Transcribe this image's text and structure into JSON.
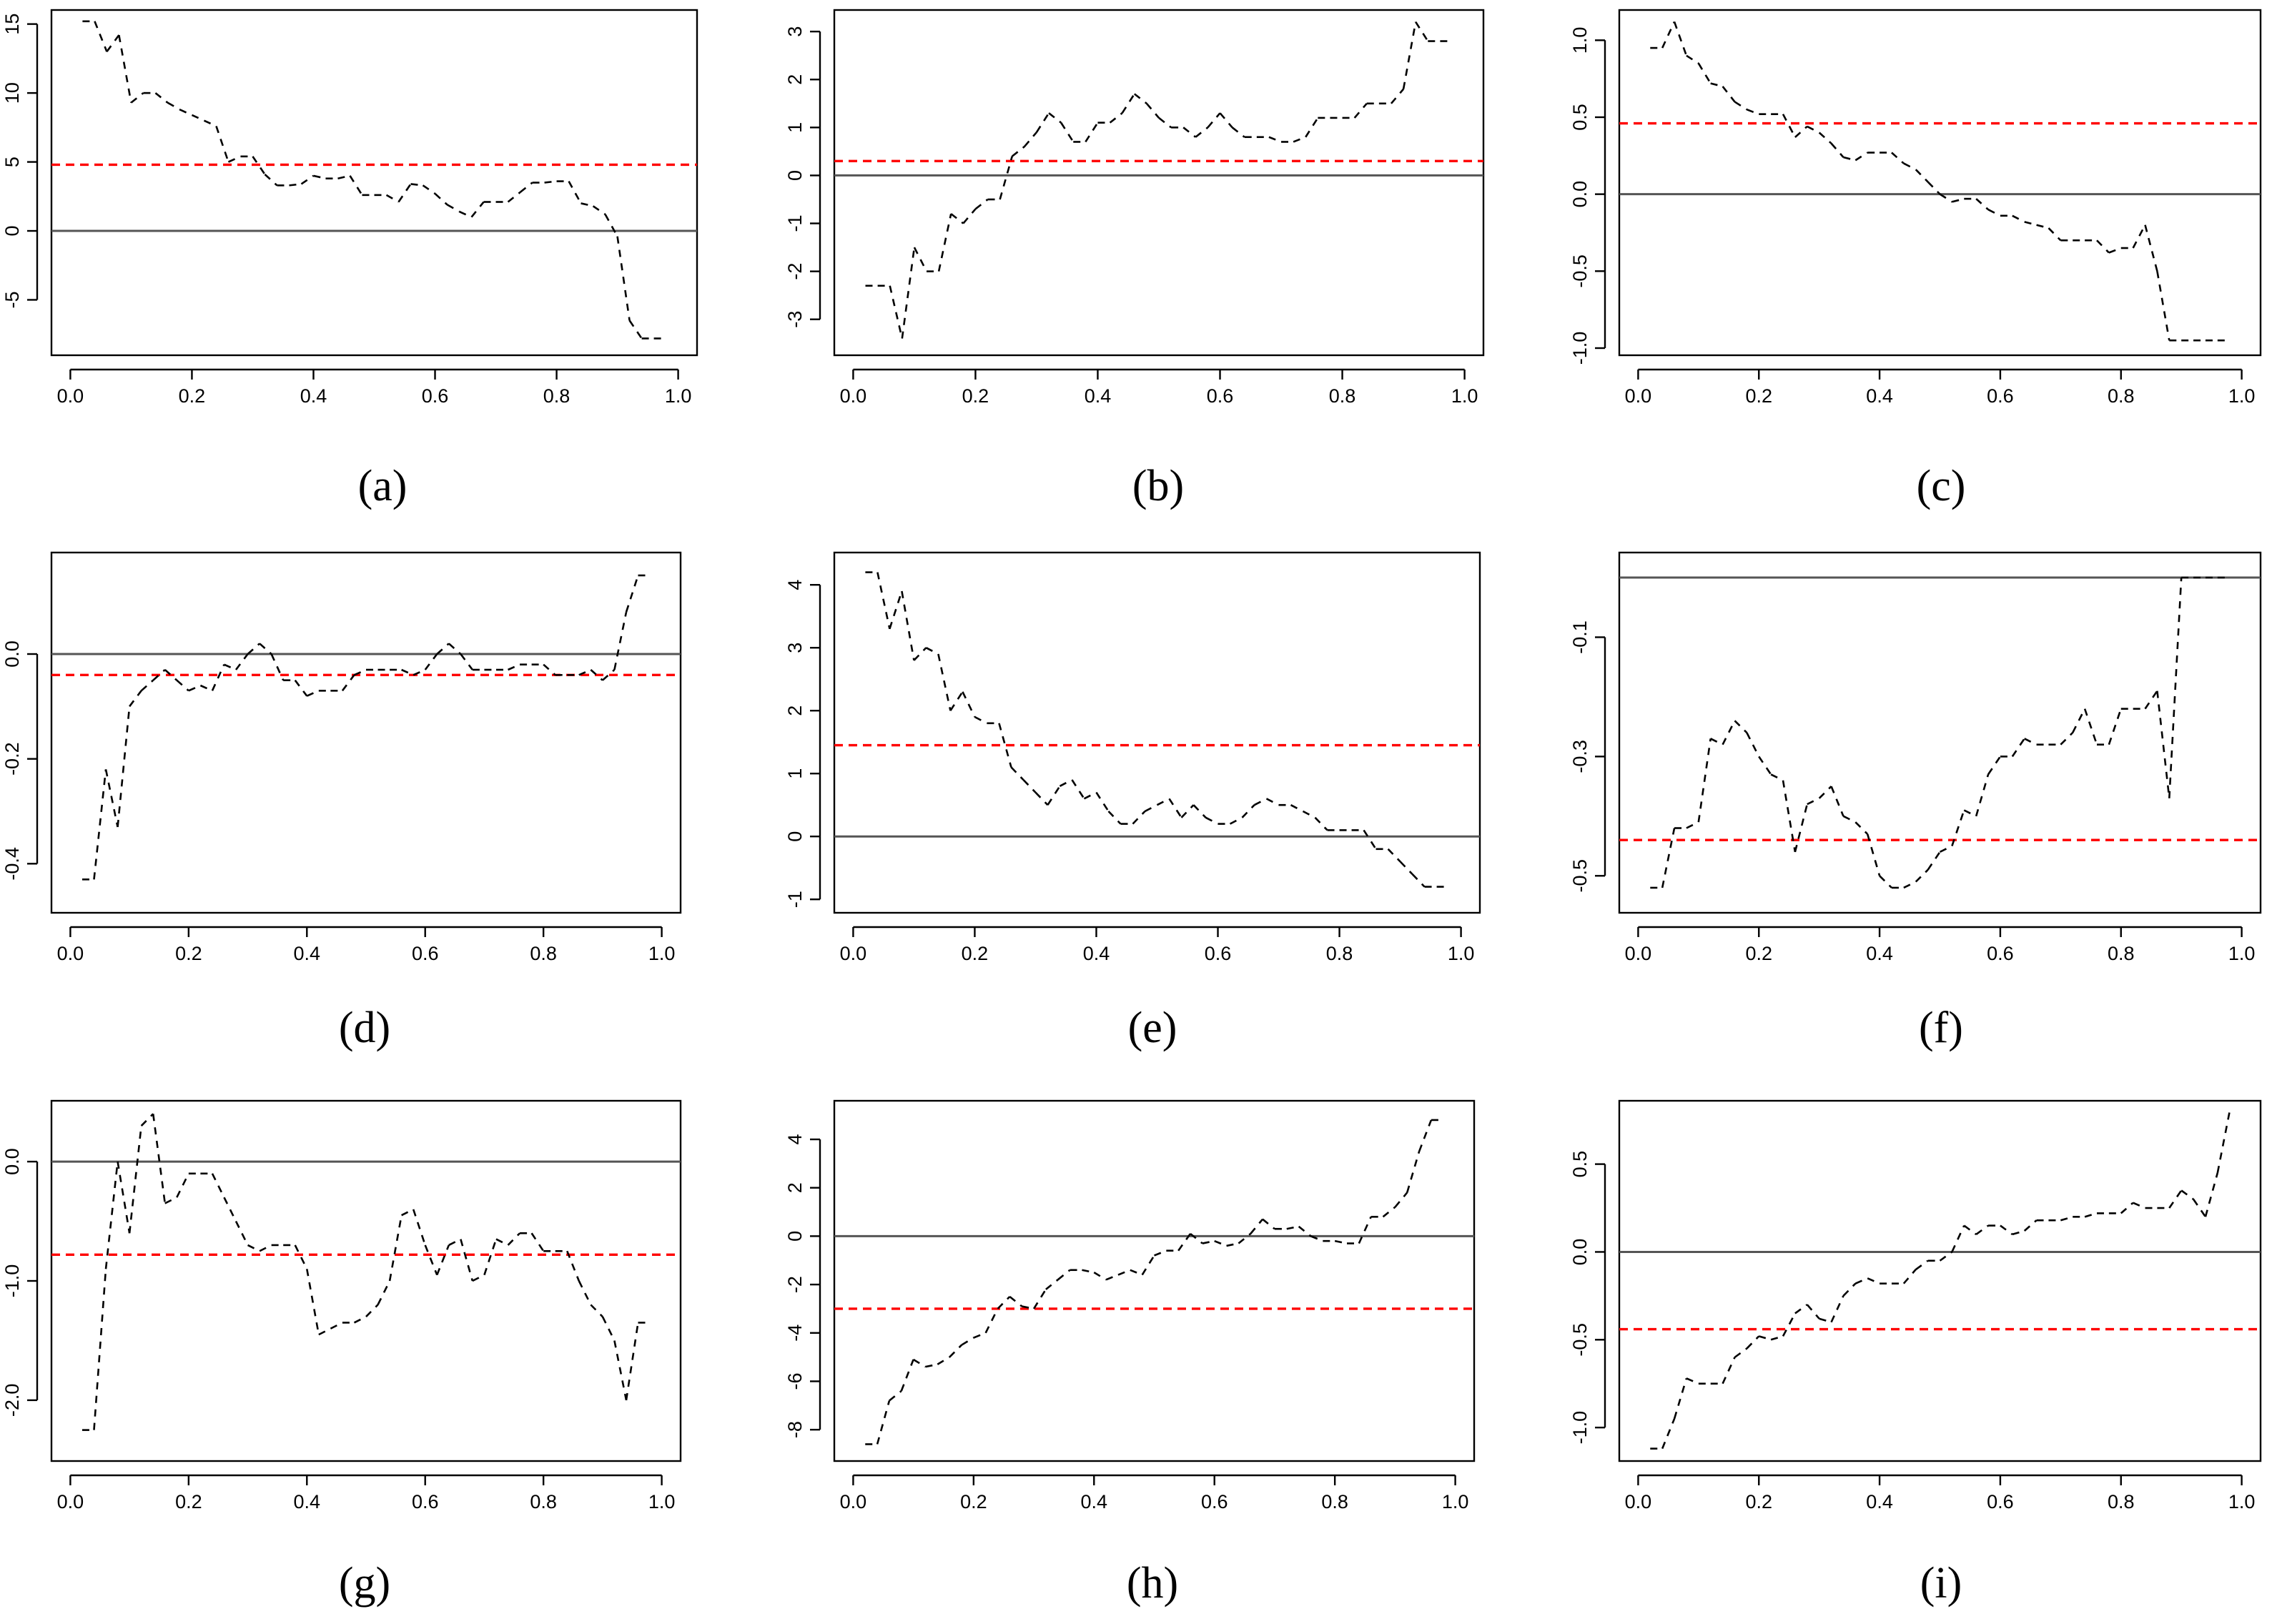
{
  "figure": {
    "panels": [
      "(a)",
      "(b)",
      "(c)",
      "(d)",
      "(e)",
      "(f)",
      "(g)",
      "(h)",
      "(i)"
    ]
  },
  "colors": {
    "mean_line": "#ff0000",
    "zero_line": "#555555",
    "series": "#000000"
  },
  "chart_data": [
    {
      "panel": "a",
      "type": "line",
      "label_letter": "a",
      "xlim": [
        0,
        1
      ],
      "ylim": [
        -8.5,
        15.5
      ],
      "xticks": [
        "0.0",
        "0.2",
        "0.4",
        "0.6",
        "0.8",
        "1.0"
      ],
      "yticks": [
        -5,
        0,
        5,
        10,
        15
      ],
      "yticklabels": [
        "-5",
        "0",
        "5",
        "10",
        "15"
      ],
      "hline_zero": 0,
      "hline_mean": 4.8,
      "x": [
        0.02,
        0.04,
        0.06,
        0.08,
        0.1,
        0.12,
        0.14,
        0.16,
        0.18,
        0.2,
        0.22,
        0.24,
        0.26,
        0.28,
        0.3,
        0.32,
        0.34,
        0.36,
        0.38,
        0.4,
        0.42,
        0.44,
        0.46,
        0.48,
        0.5,
        0.52,
        0.54,
        0.56,
        0.58,
        0.6,
        0.62,
        0.64,
        0.66,
        0.68,
        0.7,
        0.72,
        0.74,
        0.76,
        0.78,
        0.8,
        0.82,
        0.84,
        0.86,
        0.88,
        0.9,
        0.92,
        0.94,
        0.96,
        0.98
      ],
      "y": [
        15.2,
        15.2,
        13.0,
        14.2,
        9.3,
        10.0,
        10.0,
        9.3,
        8.8,
        8.4,
        8.0,
        7.6,
        5.0,
        5.4,
        5.4,
        4.1,
        3.3,
        3.3,
        3.4,
        4.0,
        3.8,
        3.8,
        4.0,
        2.6,
        2.6,
        2.6,
        2.1,
        3.4,
        3.3,
        2.7,
        1.9,
        1.4,
        1.0,
        2.1,
        2.1,
        2.1,
        2.8,
        3.5,
        3.5,
        3.6,
        3.6,
        2.0,
        1.8,
        1.2,
        -0.4,
        -6.5,
        -7.8,
        -7.8,
        -7.8
      ]
    },
    {
      "panel": "b",
      "type": "line",
      "label_letter": "b",
      "xlim": [
        0,
        1
      ],
      "ylim": [
        -3.6,
        3.3
      ],
      "xticks": [
        "0.0",
        "0.2",
        "0.4",
        "0.6",
        "0.8",
        "1.0"
      ],
      "yticks": [
        -3,
        -2,
        -1,
        0,
        1,
        2,
        3
      ],
      "yticklabels": [
        "-3",
        "-2",
        "-1",
        "0",
        "1",
        "2",
        "3"
      ],
      "hline_zero": 0,
      "hline_mean": 0.3,
      "x": [
        0.02,
        0.04,
        0.06,
        0.08,
        0.1,
        0.12,
        0.14,
        0.16,
        0.18,
        0.2,
        0.22,
        0.24,
        0.26,
        0.28,
        0.3,
        0.32,
        0.34,
        0.36,
        0.38,
        0.4,
        0.42,
        0.44,
        0.46,
        0.48,
        0.5,
        0.52,
        0.54,
        0.56,
        0.58,
        0.6,
        0.62,
        0.64,
        0.66,
        0.68,
        0.7,
        0.72,
        0.74,
        0.76,
        0.78,
        0.8,
        0.82,
        0.84,
        0.86,
        0.88,
        0.9,
        0.92,
        0.94,
        0.96,
        0.98
      ],
      "y": [
        -2.3,
        -2.3,
        -2.3,
        -3.4,
        -1.5,
        -2.0,
        -2.0,
        -0.8,
        -1.0,
        -0.7,
        -0.5,
        -0.5,
        0.4,
        0.6,
        0.9,
        1.3,
        1.1,
        0.7,
        0.7,
        1.1,
        1.1,
        1.3,
        1.7,
        1.5,
        1.2,
        1.0,
        1.0,
        0.8,
        1.0,
        1.3,
        1.0,
        0.8,
        0.8,
        0.8,
        0.7,
        0.7,
        0.8,
        1.2,
        1.2,
        1.2,
        1.2,
        1.5,
        1.5,
        1.5,
        1.8,
        3.2,
        2.8,
        2.8,
        2.8
      ]
    },
    {
      "panel": "c",
      "type": "line",
      "label_letter": "c",
      "xlim": [
        0,
        1
      ],
      "ylim": [
        -1.0,
        1.15
      ],
      "xticks": [
        "0.0",
        "0.2",
        "0.4",
        "0.6",
        "0.8",
        "1.0"
      ],
      "yticks": [
        -1.0,
        -0.5,
        0.0,
        0.5,
        1.0
      ],
      "yticklabels": [
        "-1.0",
        "-0.5",
        "0.0",
        "0.5",
        "1.0"
      ],
      "hline_zero": 0,
      "hline_mean": 0.46,
      "x": [
        0.02,
        0.04,
        0.06,
        0.08,
        0.1,
        0.12,
        0.14,
        0.16,
        0.18,
        0.2,
        0.22,
        0.24,
        0.26,
        0.28,
        0.3,
        0.32,
        0.34,
        0.36,
        0.38,
        0.4,
        0.42,
        0.44,
        0.46,
        0.48,
        0.5,
        0.52,
        0.54,
        0.56,
        0.58,
        0.6,
        0.62,
        0.64,
        0.66,
        0.68,
        0.7,
        0.72,
        0.74,
        0.76,
        0.78,
        0.8,
        0.82,
        0.84,
        0.86,
        0.88,
        0.9,
        0.92,
        0.94,
        0.96,
        0.98
      ],
      "y": [
        0.95,
        0.95,
        1.12,
        0.9,
        0.85,
        0.72,
        0.7,
        0.6,
        0.55,
        0.52,
        0.52,
        0.52,
        0.37,
        0.44,
        0.4,
        0.33,
        0.24,
        0.22,
        0.27,
        0.27,
        0.27,
        0.2,
        0.16,
        0.08,
        0.0,
        -0.05,
        -0.03,
        -0.03,
        -0.1,
        -0.14,
        -0.14,
        -0.18,
        -0.2,
        -0.22,
        -0.3,
        -0.3,
        -0.3,
        -0.3,
        -0.38,
        -0.35,
        -0.35,
        -0.2,
        -0.5,
        -0.95,
        -0.95,
        -0.95,
        -0.95,
        -0.95,
        -0.95
      ]
    },
    {
      "panel": "d",
      "type": "line",
      "label_letter": "d",
      "xlim": [
        0,
        1
      ],
      "ylim": [
        -0.48,
        0.18
      ],
      "xticks": [
        "0.0",
        "0.2",
        "0.4",
        "0.6",
        "0.8",
        "1.0"
      ],
      "yticks": [
        -0.4,
        -0.2,
        0.0
      ],
      "yticklabels": [
        "-0.4",
        "-0.2",
        "0.0"
      ],
      "hline_zero": 0,
      "hline_mean": -0.04,
      "x": [
        0.02,
        0.04,
        0.06,
        0.08,
        0.1,
        0.12,
        0.14,
        0.16,
        0.18,
        0.2,
        0.22,
        0.24,
        0.26,
        0.28,
        0.3,
        0.32,
        0.34,
        0.36,
        0.38,
        0.4,
        0.42,
        0.44,
        0.46,
        0.48,
        0.5,
        0.52,
        0.54,
        0.56,
        0.58,
        0.6,
        0.62,
        0.64,
        0.66,
        0.68,
        0.7,
        0.72,
        0.74,
        0.76,
        0.78,
        0.8,
        0.82,
        0.84,
        0.86,
        0.88,
        0.9,
        0.92,
        0.94,
        0.96,
        0.98
      ],
      "y": [
        -0.43,
        -0.43,
        -0.22,
        -0.33,
        -0.1,
        -0.07,
        -0.05,
        -0.03,
        -0.05,
        -0.07,
        -0.06,
        -0.07,
        -0.02,
        -0.03,
        0.0,
        0.02,
        0.0,
        -0.05,
        -0.05,
        -0.08,
        -0.07,
        -0.07,
        -0.07,
        -0.04,
        -0.03,
        -0.03,
        -0.03,
        -0.03,
        -0.04,
        -0.03,
        0.0,
        0.02,
        0.0,
        -0.03,
        -0.03,
        -0.03,
        -0.03,
        -0.02,
        -0.02,
        -0.02,
        -0.04,
        -0.04,
        -0.04,
        -0.03,
        -0.05,
        -0.03,
        0.08,
        0.15,
        0.15
      ]
    },
    {
      "panel": "e",
      "type": "line",
      "label_letter": "e",
      "xlim": [
        0,
        1
      ],
      "ylim": [
        -1.1,
        4.4
      ],
      "xticks": [
        "0.0",
        "0.2",
        "0.4",
        "0.6",
        "0.8",
        "1.0"
      ],
      "yticks": [
        -1,
        0,
        1,
        2,
        3,
        4
      ],
      "yticklabels": [
        "-1",
        "0",
        "1",
        "2",
        "3",
        "4"
      ],
      "hline_zero": 0,
      "hline_mean": 1.45,
      "x": [
        0.02,
        0.04,
        0.06,
        0.08,
        0.1,
        0.12,
        0.14,
        0.16,
        0.18,
        0.2,
        0.22,
        0.24,
        0.26,
        0.28,
        0.3,
        0.32,
        0.34,
        0.36,
        0.38,
        0.4,
        0.42,
        0.44,
        0.46,
        0.48,
        0.5,
        0.52,
        0.54,
        0.56,
        0.58,
        0.6,
        0.62,
        0.64,
        0.66,
        0.68,
        0.7,
        0.72,
        0.74,
        0.76,
        0.78,
        0.8,
        0.82,
        0.84,
        0.86,
        0.88,
        0.9,
        0.92,
        0.94,
        0.96,
        0.98
      ],
      "y": [
        4.2,
        4.2,
        3.3,
        3.9,
        2.8,
        3.0,
        2.9,
        2.0,
        2.3,
        1.9,
        1.8,
        1.8,
        1.1,
        0.9,
        0.7,
        0.5,
        0.8,
        0.9,
        0.6,
        0.7,
        0.4,
        0.2,
        0.2,
        0.4,
        0.5,
        0.6,
        0.3,
        0.5,
        0.3,
        0.2,
        0.2,
        0.3,
        0.5,
        0.6,
        0.5,
        0.5,
        0.4,
        0.3,
        0.1,
        0.1,
        0.1,
        0.1,
        -0.2,
        -0.2,
        -0.4,
        -0.6,
        -0.8,
        -0.8,
        -0.8
      ]
    },
    {
      "panel": "f",
      "type": "line",
      "label_letter": "f",
      "xlim": [
        0,
        1
      ],
      "ylim": [
        -0.55,
        0.03
      ],
      "xticks": [
        "0.0",
        "0.2",
        "0.4",
        "0.6",
        "0.8",
        "1.0"
      ],
      "yticks": [
        -0.5,
        -0.3,
        -0.1
      ],
      "yticklabels": [
        "-0.5",
        "-0.3",
        "-0.1"
      ],
      "hline_zero": 0,
      "hline_mean": -0.44,
      "x": [
        0.02,
        0.04,
        0.06,
        0.08,
        0.1,
        0.12,
        0.14,
        0.16,
        0.18,
        0.2,
        0.22,
        0.24,
        0.26,
        0.28,
        0.3,
        0.32,
        0.34,
        0.36,
        0.38,
        0.4,
        0.42,
        0.44,
        0.46,
        0.48,
        0.5,
        0.52,
        0.54,
        0.56,
        0.58,
        0.6,
        0.62,
        0.64,
        0.66,
        0.68,
        0.7,
        0.72,
        0.74,
        0.76,
        0.78,
        0.8,
        0.82,
        0.84,
        0.86,
        0.88,
        0.9,
        0.92,
        0.94,
        0.96,
        0.98
      ],
      "y": [
        -0.52,
        -0.52,
        -0.42,
        -0.42,
        -0.41,
        -0.27,
        -0.28,
        -0.24,
        -0.26,
        -0.3,
        -0.33,
        -0.34,
        -0.46,
        -0.38,
        -0.37,
        -0.35,
        -0.4,
        -0.41,
        -0.43,
        -0.5,
        -0.52,
        -0.52,
        -0.51,
        -0.49,
        -0.46,
        -0.45,
        -0.39,
        -0.4,
        -0.33,
        -0.3,
        -0.3,
        -0.27,
        -0.28,
        -0.28,
        -0.28,
        -0.26,
        -0.22,
        -0.28,
        -0.28,
        -0.22,
        -0.22,
        -0.22,
        -0.19,
        -0.37,
        0.0,
        0.0,
        0.0,
        0.0,
        0.0
      ]
    },
    {
      "panel": "g",
      "type": "line",
      "label_letter": "g",
      "xlim": [
        0,
        1
      ],
      "ylim": [
        -2.45,
        0.45
      ],
      "xticks": [
        "0.0",
        "0.2",
        "0.4",
        "0.6",
        "0.8",
        "1.0"
      ],
      "yticks": [
        -2.0,
        -1.0,
        0.0
      ],
      "yticklabels": [
        "-2.0",
        "-1.0",
        "0.0"
      ],
      "hline_zero": 0,
      "hline_mean": -0.78,
      "x": [
        0.02,
        0.04,
        0.06,
        0.08,
        0.1,
        0.12,
        0.14,
        0.16,
        0.18,
        0.2,
        0.22,
        0.24,
        0.26,
        0.28,
        0.3,
        0.32,
        0.34,
        0.36,
        0.38,
        0.4,
        0.42,
        0.44,
        0.46,
        0.48,
        0.5,
        0.52,
        0.54,
        0.56,
        0.58,
        0.6,
        0.62,
        0.64,
        0.66,
        0.68,
        0.7,
        0.72,
        0.74,
        0.76,
        0.78,
        0.8,
        0.82,
        0.84,
        0.86,
        0.88,
        0.9,
        0.92,
        0.94,
        0.96,
        0.98
      ],
      "y": [
        -2.25,
        -2.25,
        -0.9,
        0.0,
        -0.6,
        0.3,
        0.4,
        -0.35,
        -0.3,
        -0.1,
        -0.1,
        -0.1,
        -0.3,
        -0.5,
        -0.7,
        -0.75,
        -0.7,
        -0.7,
        -0.7,
        -0.9,
        -1.45,
        -1.4,
        -1.35,
        -1.35,
        -1.3,
        -1.2,
        -1.0,
        -0.45,
        -0.4,
        -0.7,
        -0.95,
        -0.7,
        -0.65,
        -1.0,
        -0.95,
        -0.65,
        -0.7,
        -0.6,
        -0.6,
        -0.75,
        -0.75,
        -0.75,
        -1.0,
        -1.2,
        -1.3,
        -1.5,
        -2.0,
        -1.35,
        -1.35
      ]
    },
    {
      "panel": "h",
      "type": "line",
      "label_letter": "h",
      "xlim": [
        0,
        1
      ],
      "ylim": [
        -9.0,
        5.3
      ],
      "xticks": [
        "0.0",
        "0.2",
        "0.4",
        "0.6",
        "0.8",
        "1.0"
      ],
      "yticks": [
        -8,
        -6,
        -4,
        -2,
        0,
        2,
        4
      ],
      "yticklabels": [
        "-8",
        "-6",
        "-4",
        "-2",
        "0",
        "2",
        "4"
      ],
      "hline_zero": 0,
      "hline_mean": -3.0,
      "x": [
        0.02,
        0.04,
        0.06,
        0.08,
        0.1,
        0.12,
        0.14,
        0.16,
        0.18,
        0.2,
        0.22,
        0.24,
        0.26,
        0.28,
        0.3,
        0.32,
        0.34,
        0.36,
        0.38,
        0.4,
        0.42,
        0.44,
        0.46,
        0.48,
        0.5,
        0.52,
        0.54,
        0.56,
        0.58,
        0.6,
        0.62,
        0.64,
        0.66,
        0.68,
        0.7,
        0.72,
        0.74,
        0.76,
        0.78,
        0.8,
        0.82,
        0.84,
        0.86,
        0.88,
        0.9,
        0.92,
        0.94,
        0.96,
        0.98
      ],
      "y": [
        -8.6,
        -8.6,
        -6.8,
        -6.4,
        -5.1,
        -5.4,
        -5.3,
        -5.0,
        -4.5,
        -4.2,
        -4.0,
        -3.0,
        -2.5,
        -2.9,
        -3.0,
        -2.2,
        -1.8,
        -1.4,
        -1.4,
        -1.5,
        -1.8,
        -1.6,
        -1.4,
        -1.6,
        -0.8,
        -0.6,
        -0.6,
        0.1,
        -0.3,
        -0.2,
        -0.4,
        -0.3,
        0.1,
        0.7,
        0.3,
        0.3,
        0.4,
        0.0,
        -0.2,
        -0.2,
        -0.3,
        -0.3,
        0.8,
        0.8,
        1.2,
        1.8,
        3.5,
        4.8,
        4.8
      ]
    },
    {
      "panel": "i",
      "type": "line",
      "label_letter": "i",
      "xlim": [
        0,
        1
      ],
      "ylim": [
        -1.15,
        0.82
      ],
      "xticks": [
        "0.0",
        "0.2",
        "0.4",
        "0.6",
        "0.8",
        "1.0"
      ],
      "yticks": [
        -1.0,
        -0.5,
        0.0,
        0.5
      ],
      "yticklabels": [
        "-1.0",
        "-0.5",
        "0.0",
        "0.5"
      ],
      "hline_zero": 0,
      "hline_mean": -0.44,
      "x": [
        0.02,
        0.04,
        0.06,
        0.08,
        0.1,
        0.12,
        0.14,
        0.16,
        0.18,
        0.2,
        0.22,
        0.24,
        0.26,
        0.28,
        0.3,
        0.32,
        0.34,
        0.36,
        0.38,
        0.4,
        0.42,
        0.44,
        0.46,
        0.48,
        0.5,
        0.52,
        0.54,
        0.56,
        0.58,
        0.6,
        0.62,
        0.64,
        0.66,
        0.68,
        0.7,
        0.72,
        0.74,
        0.76,
        0.78,
        0.8,
        0.82,
        0.84,
        0.86,
        0.88,
        0.9,
        0.92,
        0.94,
        0.96,
        0.98
      ],
      "y": [
        -1.12,
        -1.12,
        -0.95,
        -0.72,
        -0.75,
        -0.75,
        -0.75,
        -0.6,
        -0.55,
        -0.48,
        -0.5,
        -0.48,
        -0.35,
        -0.3,
        -0.38,
        -0.4,
        -0.25,
        -0.18,
        -0.15,
        -0.18,
        -0.18,
        -0.18,
        -0.1,
        -0.05,
        -0.05,
        0.0,
        0.15,
        0.1,
        0.15,
        0.15,
        0.1,
        0.12,
        0.18,
        0.18,
        0.18,
        0.2,
        0.2,
        0.22,
        0.22,
        0.22,
        0.28,
        0.25,
        0.25,
        0.25,
        0.35,
        0.3,
        0.2,
        0.45,
        0.8
      ]
    }
  ]
}
